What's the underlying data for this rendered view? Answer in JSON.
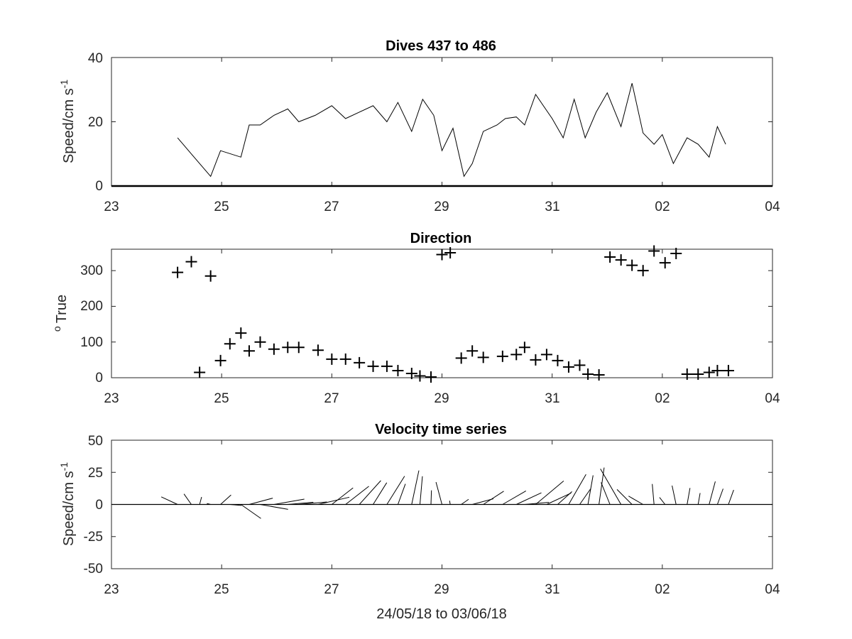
{
  "figure": {
    "xlabel": "24/05/18 to 03/06/18",
    "xtick_labels": [
      "23",
      "25",
      "27",
      "29",
      "31",
      "02",
      "04"
    ],
    "line_color": "#000000",
    "axis_color": "#262626"
  },
  "chart_data": [
    {
      "type": "line",
      "title": "Dives 437 to 486",
      "ylabel": "Speed/cm s",
      "ylabel_superscript": "-1",
      "xlim": [
        23,
        35
      ],
      "ylim": [
        0,
        40
      ],
      "yticks": [
        0,
        20,
        40
      ],
      "ytick_labels": [
        "0",
        "20",
        "40"
      ],
      "series": [
        {
          "x": [
            24.2,
            24.45,
            24.8,
            24.98,
            25.35,
            25.5,
            25.7,
            25.95,
            26.2,
            26.4,
            26.7,
            27.0,
            27.25,
            27.5,
            27.75,
            28.0,
            28.2,
            28.45,
            28.65,
            28.85,
            29.0,
            29.2,
            29.4,
            29.55,
            29.75,
            30.0,
            30.15,
            30.35,
            30.5,
            30.7,
            31.0,
            31.2,
            31.4,
            31.6,
            31.8,
            32.0,
            32.25,
            32.45,
            32.65,
            32.85,
            33.0,
            33.2,
            33.45,
            33.65,
            33.85,
            34.0,
            34.15
          ],
          "y": [
            15,
            10,
            3,
            11,
            9,
            19,
            19,
            22,
            24,
            20,
            22,
            25,
            21,
            23,
            25,
            20,
            26,
            17,
            27,
            22,
            11,
            18,
            3,
            7,
            17,
            19,
            21,
            21.5,
            19,
            28.5,
            21,
            15,
            27,
            15,
            23,
            29,
            18.5,
            32,
            16.5,
            13,
            16,
            7,
            15,
            13,
            9,
            18.5,
            13
          ]
        }
      ]
    },
    {
      "type": "scatter",
      "title": "Direction",
      "ylabel": "True",
      "ylabel_superscript": "o",
      "marker": "+",
      "xlim": [
        23,
        35
      ],
      "ylim": [
        0,
        360
      ],
      "yticks": [
        0,
        100,
        200,
        300
      ],
      "ytick_labels": [
        "0",
        "100",
        "200",
        "300"
      ],
      "series": [
        {
          "x": [
            24.2,
            24.45,
            24.6,
            24.8,
            24.98,
            25.15,
            25.35,
            25.5,
            25.7,
            25.95,
            26.2,
            26.4,
            26.75,
            27.0,
            27.25,
            27.5,
            27.75,
            28.0,
            28.2,
            28.45,
            28.6,
            28.8,
            29.0,
            29.15,
            29.35,
            29.55,
            29.75,
            30.1,
            30.35,
            30.5,
            30.7,
            30.9,
            31.1,
            31.3,
            31.5,
            31.65,
            31.85,
            32.05,
            32.25,
            32.45,
            32.65,
            32.85,
            33.05,
            33.25,
            33.45,
            33.65,
            33.85,
            34.0,
            34.2
          ],
          "y": [
            295,
            325,
            15,
            285,
            48,
            95,
            125,
            75,
            100,
            80,
            85,
            85,
            77,
            52,
            52,
            42,
            32,
            32,
            20,
            12,
            5,
            2,
            345,
            350,
            55,
            75,
            57,
            60,
            65,
            85,
            50,
            65,
            48,
            30,
            35,
            10,
            8,
            338,
            330,
            315,
            300,
            355,
            322,
            348,
            10,
            10,
            15,
            20,
            20
          ]
        }
      ]
    },
    {
      "type": "stick",
      "title": "Velocity time series",
      "ylabel": "Speed/cm s",
      "ylabel_superscript": "-1",
      "xlim": [
        23,
        35
      ],
      "ylim": [
        -50,
        50
      ],
      "yticks": [
        -50,
        -25,
        0,
        25,
        50
      ],
      "ytick_labels": [
        "-50",
        "-25",
        "0",
        "25",
        "50"
      ],
      "series": [
        {
          "t": [
            24.2,
            24.45,
            24.6,
            24.8,
            24.98,
            25.15,
            25.35,
            25.5,
            25.7,
            25.95,
            26.2,
            26.4,
            26.75,
            27.0,
            27.25,
            27.5,
            27.75,
            28.0,
            28.2,
            28.45,
            28.6,
            28.8,
            29.0,
            29.15,
            29.35,
            29.55,
            29.75,
            30.1,
            30.35,
            30.5,
            30.7,
            30.9,
            31.1,
            31.3,
            31.5,
            31.65,
            31.85,
            32.05,
            32.25,
            32.45,
            32.65,
            32.85,
            33.05,
            33.25,
            33.45,
            33.65,
            33.85,
            34.0,
            34.2
          ],
          "speed": [
            14,
            10,
            6,
            3,
            11,
            9,
            19,
            19,
            22,
            24,
            20,
            22,
            25,
            21,
            23,
            25,
            20,
            26,
            17,
            27,
            22,
            11,
            18,
            3,
            7,
            17,
            19,
            21,
            21.5,
            19,
            28.5,
            21,
            15,
            27,
            15,
            23,
            29,
            18.5,
            32,
            16.5,
            13,
            16,
            7,
            15,
            13,
            9,
            18.5,
            13,
            12
          ],
          "direction": [
            295,
            325,
            15,
            285,
            48,
            95,
            125,
            75,
            100,
            80,
            85,
            85,
            77,
            52,
            52,
            42,
            32,
            32,
            20,
            12,
            5,
            2,
            345,
            350,
            55,
            75,
            57,
            60,
            65,
            85,
            50,
            65,
            48,
            30,
            35,
            10,
            8,
            338,
            330,
            315,
            300,
            355,
            322,
            348,
            10,
            10,
            15,
            20,
            20
          ]
        }
      ]
    }
  ]
}
